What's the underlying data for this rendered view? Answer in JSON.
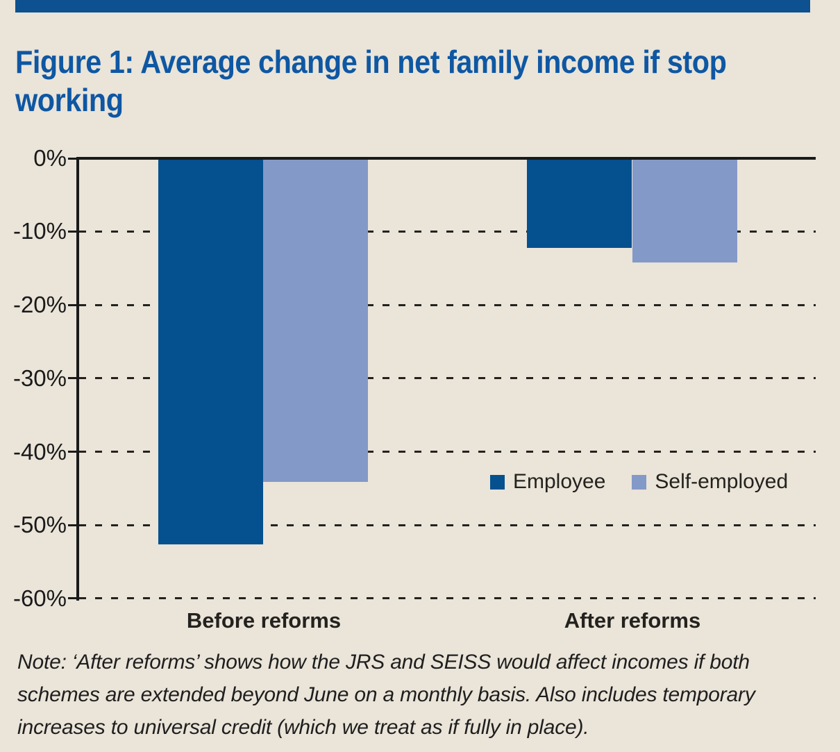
{
  "header": {
    "title_lines": [
      "Figure 1: Average change in net family income if stop",
      "working"
    ]
  },
  "colors": {
    "background": "#eae4d9",
    "header_bar": "#0d5190",
    "title_text": "#0e57a3",
    "employee_bar": "#05508e",
    "self_employed_bar": "#8399c7",
    "axis_text": "#1a1a1a"
  },
  "chart_data": {
    "type": "bar",
    "title": "Figure 1: Average change in net family income if stop working",
    "categories": [
      "Before reforms",
      "After reforms"
    ],
    "series": [
      {
        "name": "Employee",
        "color": "#05508e",
        "values": [
          -52.5,
          -12
        ]
      },
      {
        "name": "Self-employed",
        "color": "#8399c7",
        "values": [
          -44,
          -14
        ]
      }
    ],
    "ylim": [
      -60,
      0
    ],
    "yticks": [
      "0%",
      "-10%",
      "-20%",
      "-30%",
      "-40%",
      "-50%",
      "-60%"
    ],
    "ylabel": "",
    "xlabel": "",
    "grid": "horizontal dashed",
    "legend_position": "inside middle-right"
  },
  "note": {
    "lines": [
      "Note: ‘After reforms’ shows how the JRS and SEISS would affect incomes if both",
      "schemes are extended beyond June on a monthly basis. Also includes temporary",
      "increases to universal credit (which we treat as if fully in place)."
    ]
  }
}
